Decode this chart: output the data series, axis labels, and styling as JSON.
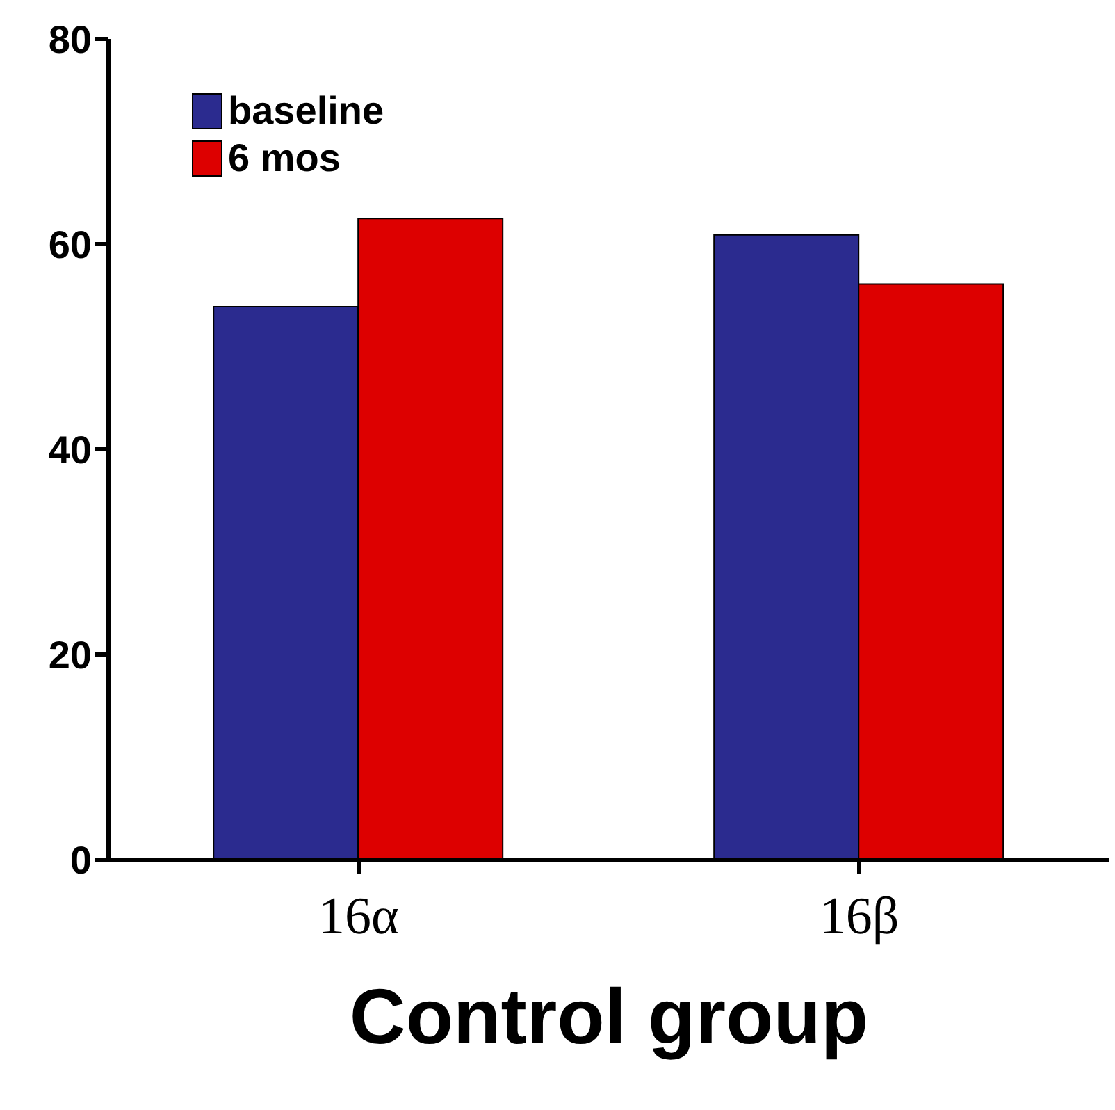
{
  "chart_data": {
    "type": "bar",
    "xlabel": "Control group",
    "categories": [
      "16α",
      "16β"
    ],
    "series": [
      {
        "name": "baseline",
        "color": "#2b2b8f",
        "values": [
          53.9,
          60.9
        ]
      },
      {
        "name": "6 mos",
        "color": "#dd0000",
        "values": [
          62.5,
          56.1
        ]
      }
    ],
    "ylim": [
      0,
      80
    ],
    "yticks": [
      0,
      20,
      40,
      60,
      80
    ],
    "grid": false,
    "legend": "top left"
  }
}
